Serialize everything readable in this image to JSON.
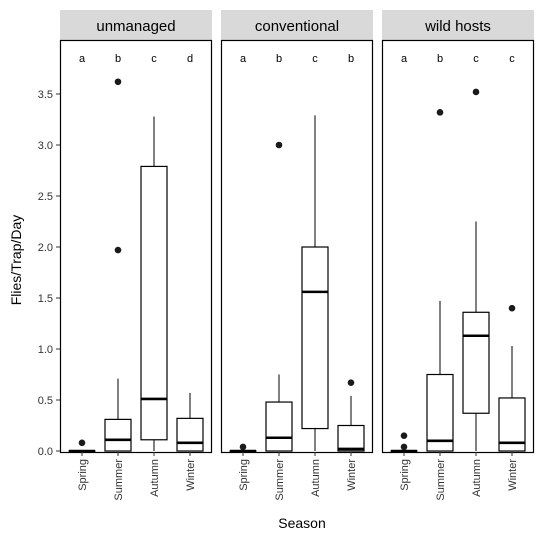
{
  "chart_data": {
    "type": "boxplot",
    "xlabel": "Season",
    "ylabel": "Flies/Trap/Day",
    "ylim": [
      0,
      3.85
    ],
    "yticks": [
      0.0,
      0.5,
      1.0,
      1.5,
      2.0,
      2.5,
      3.0,
      3.5
    ],
    "ytick_labels": [
      "0.0",
      "0.5",
      "1.0",
      "1.5",
      "2.0",
      "2.5",
      "3.0",
      "3.5"
    ],
    "categories": [
      "Spring",
      "Summer",
      "Autumn",
      "Winter"
    ],
    "grid": false,
    "panels": [
      {
        "name": "unmanaged",
        "letters": [
          "a",
          "b",
          "c",
          "d"
        ],
        "boxes": [
          {
            "category": "Spring",
            "q1": 0.0,
            "median": 0.0,
            "q3": 0.0,
            "whisker_low": 0.0,
            "whisker_high": 0.0,
            "outliers": [
              0.08
            ]
          },
          {
            "category": "Summer",
            "q1": 0.0,
            "median": 0.11,
            "q3": 0.31,
            "whisker_low": 0.0,
            "whisker_high": 0.71,
            "outliers": [
              1.97,
              3.62
            ]
          },
          {
            "category": "Autumn",
            "q1": 0.11,
            "median": 0.51,
            "q3": 2.79,
            "whisker_low": 0.0,
            "whisker_high": 3.28,
            "outliers": []
          },
          {
            "category": "Winter",
            "q1": 0.0,
            "median": 0.08,
            "q3": 0.32,
            "whisker_low": 0.0,
            "whisker_high": 0.57,
            "outliers": []
          }
        ]
      },
      {
        "name": "conventional",
        "letters": [
          "a",
          "b",
          "c",
          "b"
        ],
        "boxes": [
          {
            "category": "Spring",
            "q1": 0.0,
            "median": 0.0,
            "q3": 0.0,
            "whisker_low": 0.0,
            "whisker_high": 0.0,
            "outliers": [
              0.04
            ]
          },
          {
            "category": "Summer",
            "q1": 0.0,
            "median": 0.13,
            "q3": 0.48,
            "whisker_low": 0.0,
            "whisker_high": 0.75,
            "outliers": [
              3.0
            ]
          },
          {
            "category": "Autumn",
            "q1": 0.22,
            "median": 1.56,
            "q3": 2.0,
            "whisker_low": 0.0,
            "whisker_high": 3.29,
            "outliers": []
          },
          {
            "category": "Winter",
            "q1": 0.0,
            "median": 0.02,
            "q3": 0.25,
            "whisker_low": 0.0,
            "whisker_high": 0.54,
            "outliers": [
              0.67
            ]
          }
        ]
      },
      {
        "name": "wild hosts",
        "letters": [
          "a",
          "b",
          "c",
          "c"
        ],
        "boxes": [
          {
            "category": "Spring",
            "q1": 0.0,
            "median": 0.0,
            "q3": 0.0,
            "whisker_low": 0.0,
            "whisker_high": 0.0,
            "outliers": [
              0.04,
              0.15
            ]
          },
          {
            "category": "Summer",
            "q1": 0.0,
            "median": 0.1,
            "q3": 0.75,
            "whisker_low": 0.0,
            "whisker_high": 1.47,
            "outliers": [
              3.32
            ]
          },
          {
            "category": "Autumn",
            "q1": 0.37,
            "median": 1.13,
            "q3": 1.36,
            "whisker_low": 0.0,
            "whisker_high": 2.25,
            "outliers": [
              3.52
            ]
          },
          {
            "category": "Winter",
            "q1": 0.0,
            "median": 0.08,
            "q3": 0.52,
            "whisker_low": 0.0,
            "whisker_high": 1.03,
            "outliers": [
              1.4
            ]
          }
        ]
      }
    ]
  }
}
